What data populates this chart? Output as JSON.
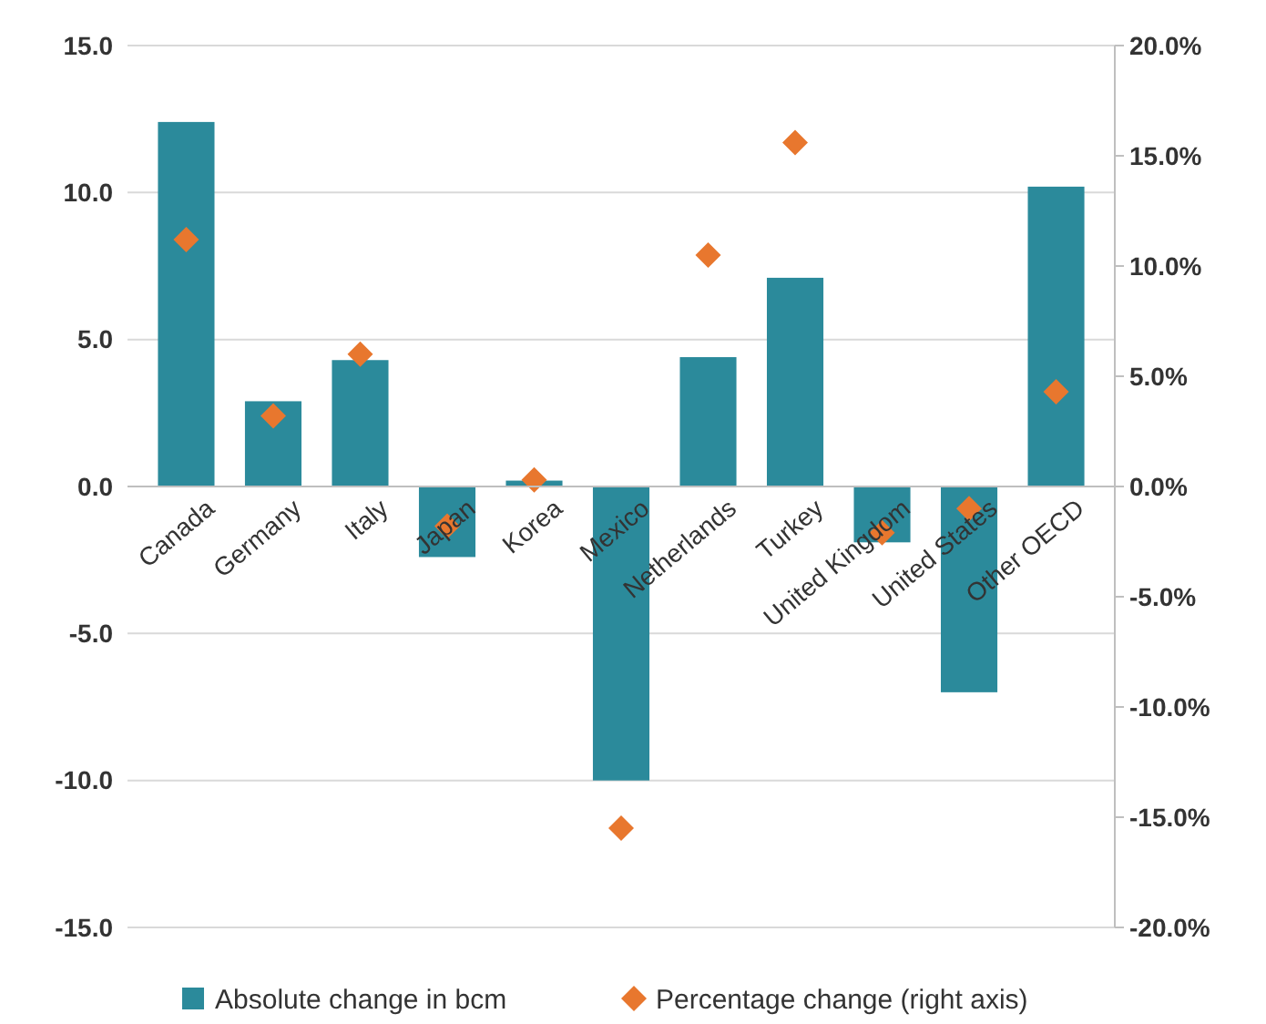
{
  "chart_data": {
    "type": "bar",
    "categories": [
      "Canada",
      "Germany",
      "Italy",
      "Japan",
      "Korea",
      "Mexico",
      "Netherlands",
      "Turkey",
      "United Kingdom",
      "United States",
      "Other OECD"
    ],
    "series": [
      {
        "name": "Absolute change in bcm",
        "color": "#2b8a9b",
        "values": [
          12.4,
          2.9,
          4.3,
          -2.4,
          0.2,
          -10.0,
          4.4,
          7.1,
          -1.9,
          -7.0,
          10.2
        ]
      },
      {
        "name": "Percentage change (right axis)",
        "type": "scatter",
        "axis": "y2",
        "color": "#e8772e",
        "values": [
          11.2,
          3.2,
          6.0,
          -1.8,
          0.3,
          -15.5,
          10.5,
          15.6,
          -2.1,
          -1.0,
          4.3
        ]
      }
    ],
    "ylim": [
      -15,
      15
    ],
    "yticks": [
      {
        "value": -15,
        "label": "-15.0"
      },
      {
        "value": -10,
        "label": "-10.0"
      },
      {
        "value": -5,
        "label": "-5.0"
      },
      {
        "value": 0,
        "label": "0.0"
      },
      {
        "value": 5,
        "label": "5.0"
      },
      {
        "value": 10,
        "label": "10.0"
      },
      {
        "value": 15,
        "label": "15.0"
      }
    ],
    "y2lim": [
      -20,
      20
    ],
    "y2ticks": [
      {
        "value": -20,
        "label": "-20.0%"
      },
      {
        "value": -15,
        "label": "-15.0%"
      },
      {
        "value": -10,
        "label": "-10.0%"
      },
      {
        "value": -5,
        "label": "-5.0%"
      },
      {
        "value": 0,
        "label": "0.0%"
      },
      {
        "value": 5,
        "label": "5.0%"
      },
      {
        "value": 10,
        "label": "10.0%"
      },
      {
        "value": 15,
        "label": "15.0%"
      },
      {
        "value": 20,
        "label": "20.0%"
      }
    ],
    "grid": "y",
    "legend": "bottom",
    "marker": "diamond"
  }
}
